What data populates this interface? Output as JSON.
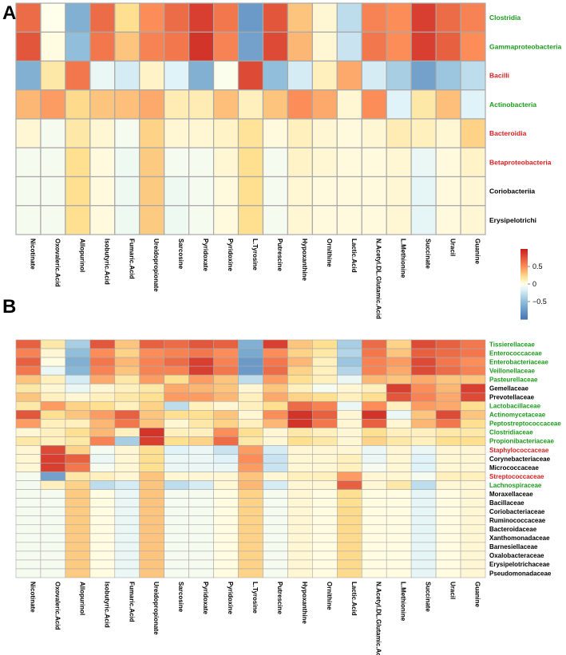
{
  "colors": {
    "green": "#1a9a1a",
    "red": "#d62020",
    "black": "#000000",
    "grid": "#a9a9a9"
  },
  "colorbar": {
    "ticks": [
      {
        "value": 0.5,
        "label": "0.5"
      },
      {
        "value": 0,
        "label": "0"
      },
      {
        "value": -0.5,
        "label": "−0.5"
      }
    ],
    "range": [
      -1,
      1
    ]
  },
  "chart_data": [
    {
      "type": "heatmap",
      "panel_label": "A",
      "columns": [
        "Nicotinate",
        "Oxovaleric.Acid",
        "Allopurinol",
        "Isobutyric.Acid",
        "Fumaric.Acid",
        "Ureidopropionate",
        "Sarcosine",
        "Pyridoxate",
        "Pyridoxine",
        "L.Tyrosine",
        "Putrescine",
        "Hypoxanthine",
        "Ornithine",
        "Lactic.Acid",
        "N.Acetyl.DL.Glutamic.Acid",
        "L.Methionine",
        "Succinate",
        "Uracil",
        "Guanine"
      ],
      "rows": [
        {
          "name": "Clostridia",
          "group": "green"
        },
        {
          "name": "Gammaproteobacteria",
          "group": "green"
        },
        {
          "name": "Bacilli",
          "group": "red"
        },
        {
          "name": "Actinobacteria",
          "group": "green"
        },
        {
          "name": "Bacteroidia",
          "group": "red"
        },
        {
          "name": "Betaproteobacteria",
          "group": "red"
        },
        {
          "name": "Coriobacteriia",
          "group": "black"
        },
        {
          "name": "Erysipelotrichi",
          "group": "black"
        }
      ],
      "values": [
        [
          0.65,
          0.0,
          -0.6,
          0.65,
          0.2,
          0.5,
          0.65,
          0.85,
          0.6,
          -0.75,
          0.75,
          0.3,
          0.05,
          -0.3,
          0.55,
          0.5,
          0.85,
          0.65,
          0.55
        ],
        [
          0.75,
          0.02,
          -0.5,
          0.6,
          0.3,
          0.55,
          0.6,
          0.9,
          0.55,
          -0.7,
          0.8,
          0.35,
          0.05,
          -0.25,
          0.6,
          0.5,
          0.85,
          0.7,
          0.5
        ],
        [
          -0.6,
          0.15,
          0.6,
          -0.1,
          -0.2,
          0.08,
          -0.15,
          -0.6,
          -0.02,
          0.8,
          -0.5,
          -0.2,
          0.1,
          0.4,
          -0.2,
          -0.4,
          -0.7,
          -0.45,
          -0.3
        ],
        [
          0.35,
          0.45,
          0.22,
          0.3,
          0.32,
          0.4,
          0.12,
          0.12,
          0.32,
          0.1,
          0.3,
          0.5,
          0.4,
          0.05,
          0.5,
          -0.15,
          0.15,
          0.32,
          -0.15
        ],
        [
          0.05,
          -0.05,
          0.15,
          0.05,
          -0.05,
          0.25,
          0.05,
          0.05,
          0.08,
          0.18,
          0.03,
          0.1,
          0.05,
          0.03,
          0.05,
          0.12,
          0.1,
          0.05,
          0.25
        ],
        [
          -0.05,
          -0.05,
          0.2,
          0.03,
          -0.08,
          0.28,
          -0.05,
          -0.05,
          0.05,
          0.2,
          -0.05,
          0.08,
          0.05,
          0.03,
          0.03,
          0.05,
          -0.1,
          0.03,
          0.08
        ],
        [
          -0.05,
          -0.05,
          0.2,
          0.03,
          -0.08,
          0.28,
          -0.08,
          -0.05,
          0.03,
          0.2,
          -0.05,
          0.05,
          0.03,
          0.03,
          0.03,
          0.05,
          -0.12,
          0.03,
          0.05
        ],
        [
          -0.05,
          -0.05,
          0.2,
          0.03,
          -0.08,
          0.28,
          -0.08,
          -0.05,
          0.03,
          0.2,
          -0.05,
          0.05,
          0.03,
          0.03,
          0.03,
          0.05,
          -0.12,
          0.03,
          0.05
        ]
      ]
    },
    {
      "type": "heatmap",
      "panel_label": "B",
      "columns": [
        "Nicotinate",
        "Oxovaleric.Acid",
        "Allopurinol",
        "Isobutyric.Acid",
        "Fumaric.Acid",
        "Ureidopropionate",
        "Sarcosine",
        "Pyridoxate",
        "Pyridoxine",
        "L.Tyrosine",
        "Putrescine",
        "Hypoxanthine",
        "Ornithine",
        "Lactic.Acid",
        "N.Acetyl.DL.Glutamic.Acid",
        "L.Methionine",
        "Succinate",
        "Uracil",
        "Guanine"
      ],
      "rows": [
        {
          "name": "Tissierellaceae",
          "group": "green"
        },
        {
          "name": "Enterococcaceae",
          "group": "green"
        },
        {
          "name": "Enterobacteriaceae",
          "group": "green"
        },
        {
          "name": "Veillonellaceae",
          "group": "green"
        },
        {
          "name": "Pasteurellaceae",
          "group": "green"
        },
        {
          "name": "Gemellaceae",
          "group": "black"
        },
        {
          "name": "Prevotellaceae",
          "group": "black"
        },
        {
          "name": "Lactobacillaceae",
          "group": "green"
        },
        {
          "name": "Actinomycetaceae",
          "group": "green"
        },
        {
          "name": "Peptostreptococcaceae",
          "group": "green"
        },
        {
          "name": "Clostridiaceae",
          "group": "green"
        },
        {
          "name": "Propionibacteriaceae",
          "group": "green"
        },
        {
          "name": "Staphylococcaceae",
          "group": "red"
        },
        {
          "name": "Corynebacteriaceae",
          "group": "black"
        },
        {
          "name": "Micrococcaceae",
          "group": "black"
        },
        {
          "name": "Streptococcaceae",
          "group": "red"
        },
        {
          "name": "Lachnospiraceae",
          "group": "green"
        },
        {
          "name": "Moraxellaceae",
          "group": "black"
        },
        {
          "name": "Bacillaceae",
          "group": "black"
        },
        {
          "name": "Coriobacteriaceae",
          "group": "black"
        },
        {
          "name": "Ruminococcaceae",
          "group": "black"
        },
        {
          "name": "Bacteroidaceae",
          "group": "black"
        },
        {
          "name": "Xanthomonadaceae",
          "group": "black"
        },
        {
          "name": "Barnesiellaceae",
          "group": "black"
        },
        {
          "name": "Oxalobacteraceae",
          "group": "black"
        },
        {
          "name": "Erysipelotrichaceae",
          "group": "black"
        },
        {
          "name": "Pseudomonadaceae",
          "group": "black"
        }
      ],
      "values": [
        [
          0.7,
          0.15,
          -0.4,
          0.75,
          0.3,
          0.7,
          0.65,
          0.75,
          0.7,
          -0.6,
          0.85,
          0.3,
          0.2,
          -0.4,
          0.65,
          0.25,
          0.8,
          0.7,
          0.6
        ],
        [
          0.55,
          0.05,
          -0.5,
          0.5,
          0.25,
          0.5,
          0.55,
          0.6,
          0.5,
          -0.65,
          0.5,
          0.25,
          0.15,
          -0.35,
          0.6,
          0.3,
          0.7,
          0.65,
          0.6
        ],
        [
          0.7,
          0.02,
          -0.6,
          0.6,
          0.35,
          0.55,
          0.65,
          0.85,
          0.55,
          -0.75,
          0.6,
          0.35,
          0.1,
          -0.45,
          0.55,
          0.45,
          0.8,
          0.6,
          0.5
        ],
        [
          0.6,
          -0.1,
          -0.55,
          0.55,
          0.3,
          0.55,
          0.55,
          0.85,
          0.6,
          -0.75,
          0.65,
          0.25,
          0.1,
          -0.35,
          0.55,
          0.4,
          0.8,
          0.65,
          0.55
        ],
        [
          0.3,
          0.1,
          -0.2,
          0.4,
          0.15,
          0.45,
          0.2,
          0.45,
          0.3,
          -0.3,
          0.45,
          0.2,
          0.1,
          -0.1,
          0.35,
          0.3,
          0.4,
          0.3,
          0.3
        ],
        [
          0.15,
          0.05,
          -0.1,
          0.05,
          0.1,
          0.15,
          0.4,
          0.35,
          0.3,
          0.05,
          0.3,
          0.1,
          -0.05,
          0.05,
          0.1,
          0.85,
          0.5,
          0.35,
          0.85
        ],
        [
          0.3,
          0.1,
          0.05,
          0.1,
          0.15,
          0.2,
          0.45,
          0.45,
          0.35,
          0.1,
          0.4,
          0.25,
          0.2,
          0.1,
          0.2,
          0.75,
          0.55,
          0.4,
          0.8
        ],
        [
          0.15,
          0.45,
          0.25,
          0.2,
          0.1,
          0.25,
          -0.3,
          0.1,
          0.05,
          0.1,
          0.2,
          0.65,
          0.55,
          -0.1,
          0.5,
          0.1,
          0.45,
          0.4,
          0.2
        ],
        [
          0.75,
          0.2,
          0.3,
          0.45,
          0.7,
          0.3,
          0.2,
          0.2,
          0.3,
          0.05,
          0.5,
          0.9,
          0.7,
          0.05,
          0.9,
          -0.1,
          0.3,
          0.8,
          0.3
        ],
        [
          0.45,
          0.1,
          0.1,
          0.35,
          0.6,
          0.3,
          0.05,
          0.15,
          0.25,
          0.1,
          0.35,
          0.9,
          0.6,
          0.05,
          0.7,
          0.05,
          0.35,
          0.6,
          0.2
        ],
        [
          0.05,
          0.1,
          0.2,
          0.35,
          0.1,
          0.9,
          0.1,
          0.1,
          0.5,
          0.2,
          0.05,
          0.15,
          0.1,
          0.05,
          0.2,
          0.1,
          0.1,
          0.15,
          0.15
        ],
        [
          0.15,
          0.1,
          0.15,
          0.55,
          -0.4,
          0.85,
          0.2,
          0.25,
          0.65,
          0.15,
          0.05,
          0.2,
          0.15,
          0.05,
          0.25,
          0.15,
          0.1,
          0.2,
          0.2
        ],
        [
          0.05,
          0.8,
          0.25,
          -0.05,
          0.05,
          0.2,
          -0.15,
          -0.1,
          -0.25,
          0.45,
          -0.2,
          0.05,
          0.05,
          0.05,
          -0.1,
          0.05,
          -0.1,
          0.05,
          0.05
        ],
        [
          0.05,
          0.85,
          0.7,
          -0.1,
          0.05,
          0.2,
          -0.1,
          -0.1,
          -0.15,
          0.5,
          -0.25,
          0.05,
          0.05,
          0.1,
          -0.1,
          0.05,
          -0.15,
          0.05,
          0.05
        ],
        [
          0.05,
          0.85,
          0.6,
          -0.05,
          0.05,
          0.2,
          -0.1,
          -0.1,
          -0.1,
          0.45,
          -0.25,
          0.05,
          0.05,
          0.1,
          -0.05,
          0.05,
          -0.15,
          0.05,
          0.05
        ],
        [
          -0.05,
          -0.7,
          0.15,
          0.1,
          0.05,
          0.3,
          0.05,
          0.05,
          0.05,
          0.3,
          0.05,
          0.1,
          0.1,
          0.45,
          0.05,
          0.05,
          -0.05,
          0.1,
          0.1
        ],
        [
          -0.05,
          0.1,
          0.25,
          -0.3,
          -0.2,
          0.3,
          -0.3,
          -0.2,
          0.05,
          0.35,
          -0.2,
          0.05,
          0.05,
          0.7,
          0.05,
          0.15,
          -0.3,
          0.05,
          0.05
        ],
        [
          -0.05,
          -0.05,
          0.28,
          0.02,
          -0.1,
          0.3,
          -0.05,
          -0.05,
          0.02,
          0.25,
          -0.05,
          0.05,
          0.02,
          0.2,
          0.02,
          0.02,
          -0.12,
          0.02,
          0.05
        ],
        [
          -0.05,
          -0.05,
          0.28,
          0.02,
          -0.1,
          0.3,
          -0.05,
          -0.05,
          0.02,
          0.25,
          -0.05,
          0.05,
          0.02,
          0.2,
          0.02,
          0.02,
          -0.12,
          0.02,
          0.05
        ],
        [
          -0.05,
          -0.05,
          0.28,
          0.02,
          -0.1,
          0.3,
          -0.05,
          -0.05,
          0.02,
          0.25,
          -0.05,
          0.05,
          0.02,
          0.22,
          0.02,
          0.02,
          -0.12,
          0.02,
          0.05
        ],
        [
          -0.05,
          -0.05,
          0.28,
          0.02,
          -0.1,
          0.3,
          -0.05,
          -0.05,
          0.02,
          0.25,
          -0.05,
          0.05,
          0.02,
          0.22,
          0.02,
          0.02,
          -0.12,
          0.02,
          0.05
        ],
        [
          -0.05,
          -0.05,
          0.28,
          0.02,
          -0.1,
          0.3,
          -0.05,
          -0.05,
          0.02,
          0.25,
          -0.05,
          0.05,
          0.02,
          0.22,
          0.02,
          0.02,
          -0.12,
          0.02,
          0.05
        ],
        [
          -0.05,
          -0.05,
          0.28,
          0.02,
          -0.1,
          0.3,
          -0.05,
          -0.05,
          0.02,
          0.25,
          -0.05,
          0.05,
          0.02,
          0.22,
          0.02,
          0.02,
          -0.12,
          0.02,
          0.05
        ],
        [
          -0.05,
          -0.05,
          0.28,
          0.02,
          -0.1,
          0.3,
          -0.05,
          -0.05,
          0.02,
          0.25,
          -0.05,
          0.05,
          0.02,
          0.22,
          0.02,
          0.02,
          -0.12,
          0.02,
          0.05
        ],
        [
          -0.05,
          -0.05,
          0.28,
          0.02,
          -0.1,
          0.3,
          -0.05,
          -0.05,
          0.02,
          0.25,
          -0.05,
          0.05,
          0.02,
          0.22,
          0.02,
          0.02,
          -0.12,
          0.02,
          0.05
        ],
        [
          -0.05,
          -0.05,
          0.28,
          0.02,
          -0.1,
          0.3,
          -0.05,
          -0.05,
          0.02,
          0.25,
          -0.05,
          0.05,
          0.02,
          0.22,
          0.02,
          0.02,
          -0.12,
          0.02,
          0.05
        ],
        [
          -0.05,
          -0.05,
          0.28,
          0.02,
          -0.1,
          0.3,
          -0.05,
          -0.05,
          0.02,
          0.25,
          -0.05,
          0.05,
          0.02,
          0.22,
          0.02,
          0.02,
          -0.12,
          0.02,
          0.05
        ]
      ]
    }
  ]
}
